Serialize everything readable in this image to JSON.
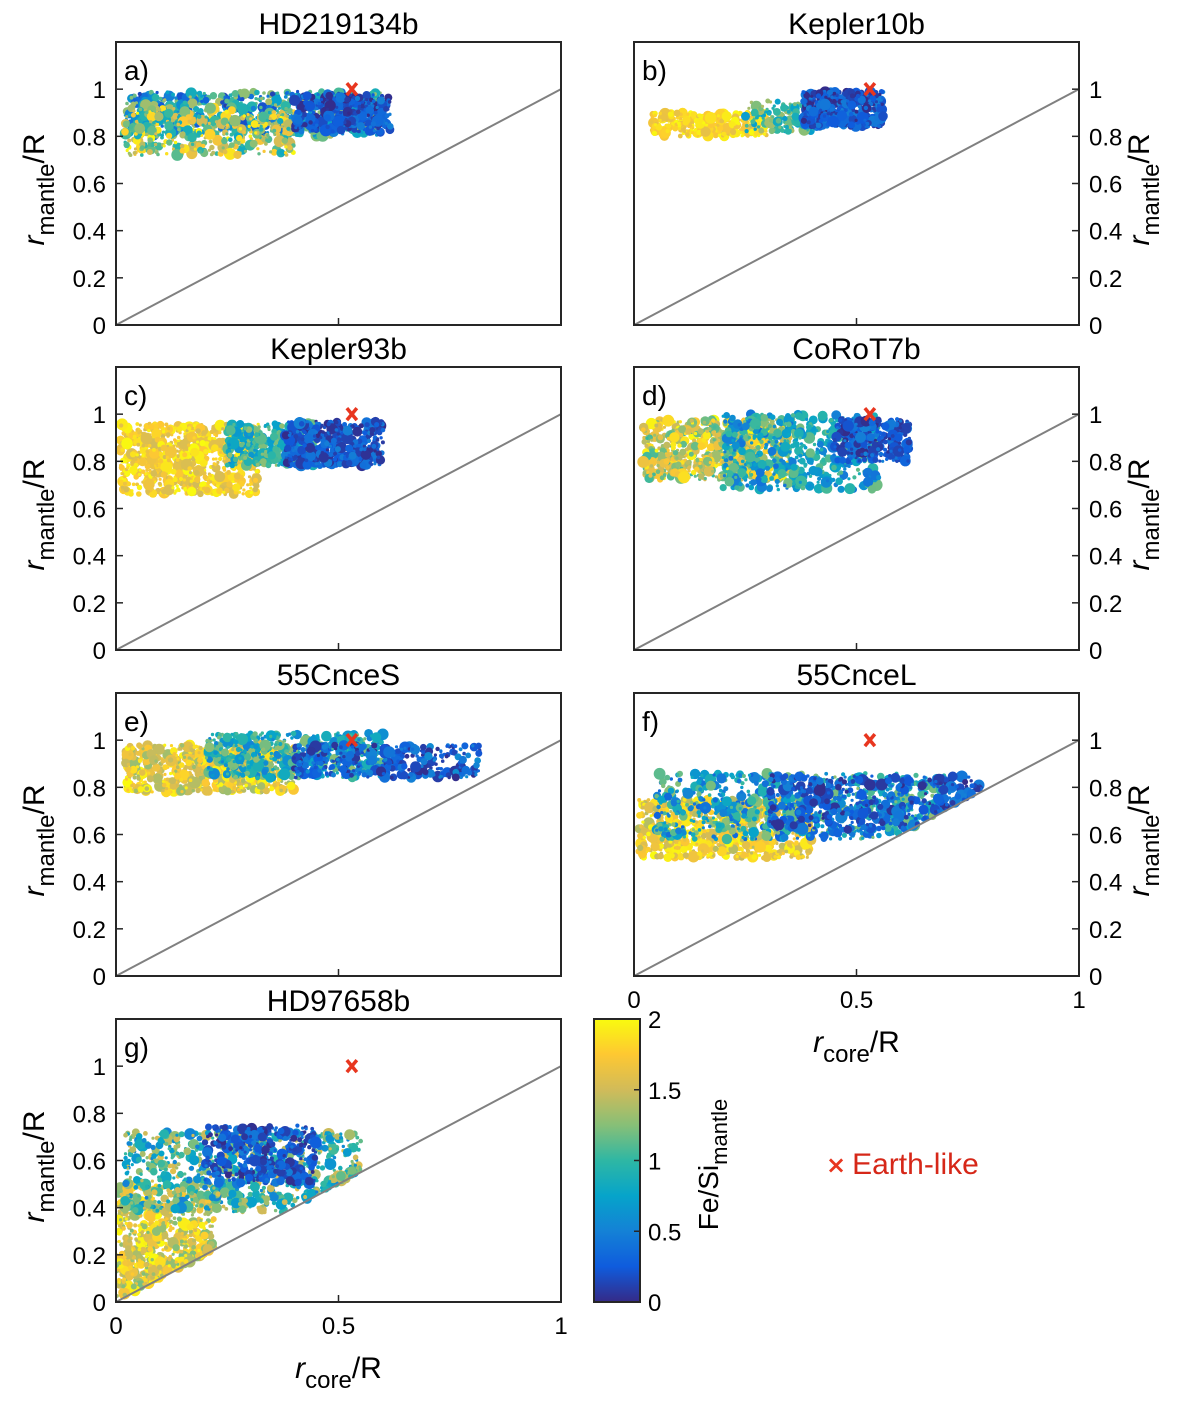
{
  "colors": {
    "reference_line": "#808080",
    "earth_marker": "#e8361f",
    "legend_text": "#d62718",
    "colormap": [
      "#352a87",
      "#0f5cdd",
      "#1481d6",
      "#06a4ca",
      "#2eb7a4",
      "#87bf77",
      "#d1bb59",
      "#fec832",
      "#f9fb0e"
    ]
  },
  "legend": {
    "marker_icon": "×",
    "label": "Earth-like"
  },
  "colorbar": {
    "label_main": "Fe/Si",
    "label_sub": "mantle",
    "range": [
      0,
      2
    ],
    "ticks": [
      "0",
      "0.5",
      "1",
      "1.5",
      "2"
    ]
  },
  "chart_data": [
    {
      "type": "scatter",
      "title": "HD219134b",
      "panel_label": "a)",
      "xlim": [
        0,
        1
      ],
      "ylim": [
        0,
        1.2
      ],
      "reference_line": "y = x",
      "earth_like": {
        "x": 0.53,
        "y": 1.0
      },
      "y_ticks": [
        "0",
        "0.2",
        "0.4",
        "0.6",
        "0.8",
        "1"
      ],
      "x_ticks": [],
      "xlabel": {
        "main": "",
        "sub": ""
      },
      "ylabel": {
        "main": "r",
        "sub": "mantle",
        "suffix": "/R"
      },
      "clusters": [
        {
          "x_range": [
            0.02,
            0.6
          ],
          "y_range": [
            0.8,
            0.99
          ],
          "fe_si_range": [
            0.1,
            1.4
          ],
          "n": 700
        },
        {
          "x_range": [
            0.02,
            0.4
          ],
          "y_range": [
            0.72,
            0.92
          ],
          "fe_si_range": [
            0.8,
            2.0
          ],
          "n": 400
        },
        {
          "x_range": [
            0.4,
            0.62
          ],
          "y_range": [
            0.82,
            0.98
          ],
          "fe_si_range": [
            0.0,
            0.5
          ],
          "n": 300
        }
      ]
    },
    {
      "type": "scatter",
      "title": "Kepler10b",
      "panel_label": "b)",
      "xlim": [
        0,
        1
      ],
      "ylim": [
        0,
        1.2
      ],
      "reference_line": "y = x",
      "earth_like": {
        "x": 0.53,
        "y": 1.0
      },
      "y_ticks": [
        "0",
        "0.2",
        "0.4",
        "0.6",
        "0.8",
        "1"
      ],
      "x_ticks": [],
      "xlabel": {
        "main": "",
        "sub": ""
      },
      "ylabel": {
        "main": "r",
        "sub": "mantle",
        "suffix": "/R"
      },
      "clusters": [
        {
          "x_range": [
            0.04,
            0.3
          ],
          "y_range": [
            0.8,
            0.9
          ],
          "fe_si_range": [
            1.6,
            2.0
          ],
          "n": 300
        },
        {
          "x_range": [
            0.25,
            0.42
          ],
          "y_range": [
            0.82,
            0.95
          ],
          "fe_si_range": [
            0.7,
            1.4
          ],
          "n": 150
        },
        {
          "x_range": [
            0.38,
            0.56
          ],
          "y_range": [
            0.84,
            0.99
          ],
          "fe_si_range": [
            0.0,
            0.5
          ],
          "n": 450
        }
      ]
    },
    {
      "type": "scatter",
      "title": "Kepler93b",
      "panel_label": "c)",
      "xlim": [
        0,
        1
      ],
      "ylim": [
        0,
        1.2
      ],
      "reference_line": "y = x",
      "earth_like": {
        "x": 0.53,
        "y": 1.0
      },
      "y_ticks": [
        "0",
        "0.2",
        "0.4",
        "0.6",
        "0.8",
        "1"
      ],
      "x_ticks": [],
      "xlabel": {
        "main": "",
        "sub": ""
      },
      "ylabel": {
        "main": "r",
        "sub": "mantle",
        "suffix": "/R"
      },
      "clusters": [
        {
          "x_range": [
            0.01,
            0.32
          ],
          "y_range": [
            0.66,
            0.96
          ],
          "fe_si_range": [
            1.5,
            2.0
          ],
          "n": 800
        },
        {
          "x_range": [
            0.25,
            0.45
          ],
          "y_range": [
            0.78,
            0.96
          ],
          "fe_si_range": [
            0.6,
            1.3
          ],
          "n": 300
        },
        {
          "x_range": [
            0.38,
            0.6
          ],
          "y_range": [
            0.78,
            0.97
          ],
          "fe_si_range": [
            0.0,
            0.5
          ],
          "n": 450
        }
      ]
    },
    {
      "type": "scatter",
      "title": "CoRoT7b",
      "panel_label": "d)",
      "xlim": [
        0,
        1
      ],
      "ylim": [
        0,
        1.2
      ],
      "reference_line": "y = x",
      "earth_like": {
        "x": 0.53,
        "y": 1.0
      },
      "y_ticks": [
        "0",
        "0.2",
        "0.4",
        "0.6",
        "0.8",
        "1"
      ],
      "x_ticks": [],
      "xlabel": {
        "main": "",
        "sub": ""
      },
      "ylabel": {
        "main": "r",
        "sub": "mantle",
        "suffix": "/R"
      },
      "clusters": [
        {
          "x_range": [
            0.02,
            0.35
          ],
          "y_range": [
            0.72,
            0.98
          ],
          "fe_si_range": [
            1.0,
            2.0
          ],
          "n": 700
        },
        {
          "x_range": [
            0.2,
            0.55
          ],
          "y_range": [
            0.68,
            1.0
          ],
          "fe_si_range": [
            0.4,
            1.2
          ],
          "n": 500
        },
        {
          "x_range": [
            0.45,
            0.62
          ],
          "y_range": [
            0.8,
            0.98
          ],
          "fe_si_range": [
            0.0,
            0.5
          ],
          "n": 300
        }
      ]
    },
    {
      "type": "scatter",
      "title": "55CnceS",
      "panel_label": "e)",
      "xlim": [
        0,
        1
      ],
      "ylim": [
        0,
        1.2
      ],
      "reference_line": "y = x",
      "earth_like": {
        "x": 0.53,
        "y": 1.0
      },
      "y_ticks": [
        "0",
        "0.2",
        "0.4",
        "0.6",
        "0.8",
        "1"
      ],
      "x_ticks": [],
      "xlabel": {
        "main": "",
        "sub": ""
      },
      "ylabel": {
        "main": "r",
        "sub": "mantle",
        "suffix": "/R"
      },
      "clusters": [
        {
          "x_range": [
            0.02,
            0.4
          ],
          "y_range": [
            0.78,
            0.98
          ],
          "fe_si_range": [
            1.3,
            2.0
          ],
          "n": 700
        },
        {
          "x_range": [
            0.2,
            0.6
          ],
          "y_range": [
            0.84,
            1.03
          ],
          "fe_si_range": [
            0.5,
            1.3
          ],
          "n": 500
        },
        {
          "x_range": [
            0.4,
            0.82
          ],
          "y_range": [
            0.84,
            0.98
          ],
          "fe_si_range": [
            0.0,
            0.6
          ],
          "n": 400
        }
      ]
    },
    {
      "type": "scatter",
      "title": "55CnceL",
      "panel_label": "f)",
      "xlim": [
        0,
        1
      ],
      "ylim": [
        0,
        1.2
      ],
      "reference_line": "y = x",
      "earth_like": {
        "x": 0.53,
        "y": 1.0
      },
      "y_ticks": [
        "0",
        "0.2",
        "0.4",
        "0.6",
        "0.8",
        "1"
      ],
      "x_ticks": [
        "0",
        "0.5",
        "1"
      ],
      "xlabel": {
        "main": "r",
        "sub": "core",
        "suffix": "/R"
      },
      "ylabel": {
        "main": "r",
        "sub": "mantle",
        "suffix": "/R"
      },
      "clusters": [
        {
          "x_range": [
            0.01,
            0.4
          ],
          "y_range": [
            0.5,
            0.75
          ],
          "fe_si_range": [
            1.4,
            2.0
          ],
          "n": 700
        },
        {
          "x_range": [
            0.05,
            0.7
          ],
          "y_range": [
            0.58,
            0.86
          ],
          "fe_si_range": [
            0.3,
            1.3
          ],
          "n": 800
        },
        {
          "x_range": [
            0.3,
            0.78
          ],
          "y_range": [
            0.62,
            0.85
          ],
          "fe_si_range": [
            0.0,
            0.5
          ],
          "n": 400
        }
      ]
    },
    {
      "type": "scatter",
      "title": "HD97658b",
      "panel_label": "g)",
      "xlim": [
        0,
        1
      ],
      "ylim": [
        0,
        1.2
      ],
      "reference_line": "y = x",
      "earth_like": {
        "x": 0.53,
        "y": 1.0
      },
      "y_ticks": [
        "0",
        "0.2",
        "0.4",
        "0.6",
        "0.8",
        "1"
      ],
      "x_ticks": [
        "0",
        "0.5",
        "1"
      ],
      "xlabel": {
        "main": "r",
        "sub": "core",
        "suffix": "/R"
      },
      "ylabel": {
        "main": "r",
        "sub": "mantle",
        "suffix": "/R"
      },
      "clusters": [
        {
          "x_range": [
            0.0,
            0.22
          ],
          "y_range": [
            0.02,
            0.5
          ],
          "fe_si_range": [
            1.2,
            2.0
          ],
          "n": 700
        },
        {
          "x_range": [
            0.02,
            0.55
          ],
          "y_range": [
            0.38,
            0.72
          ],
          "fe_si_range": [
            0.5,
            1.6
          ],
          "n": 800
        },
        {
          "x_range": [
            0.2,
            0.45
          ],
          "y_range": [
            0.5,
            0.75
          ],
          "fe_si_range": [
            0.0,
            0.5
          ],
          "n": 350
        }
      ]
    }
  ]
}
